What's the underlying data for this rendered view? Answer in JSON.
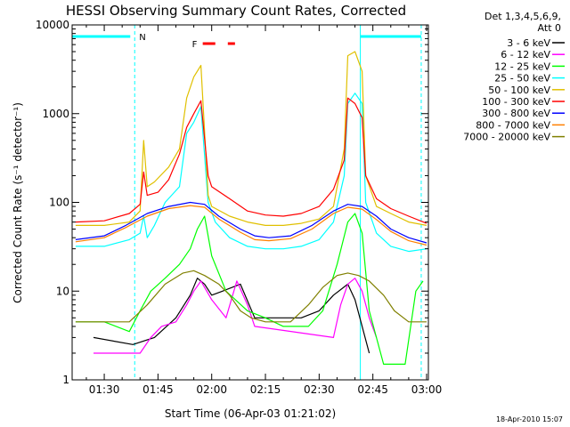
{
  "chart_data": {
    "type": "line",
    "title": "HESSI Observing Summary Count Rates, Corrected",
    "xlabel": "Start Time (06-Apr-03 01:21:02)",
    "ylabel": "Corrected Count Rate (s⁻¹ detector⁻¹)",
    "yscale": "log",
    "xlim": [
      "01:21:02",
      "03:00:30"
    ],
    "ylim": [
      1,
      10000
    ],
    "x_ticks": [
      "01:30",
      "01:45",
      "02:00",
      "02:15",
      "02:30",
      "02:45",
      "03:00"
    ],
    "y_ticks": [
      "1",
      "10",
      "100",
      "1000",
      "10000"
    ],
    "legend_header": [
      "Det 1,3,4,5,6,9,",
      "Att 0"
    ],
    "legend_placement": "outside-right",
    "stamp": "18-Apr-2010 15:07",
    "annotations": {
      "night_label": "N",
      "flare_label": "F",
      "night_start": "01:38:30",
      "day_start": "02:41:30",
      "night2_start": "02:58:30",
      "flare_marks": [
        [
          "01:57:30",
          "02:01:00"
        ],
        [
          "02:04:30",
          "02:06:30"
        ]
      ]
    },
    "series": [
      {
        "name": "3 - 6 keV",
        "color": "#000000",
        "x": [
          "01:27",
          "01:38",
          "01:44",
          "01:50",
          "01:54",
          "01:56",
          "01:58",
          "02:00",
          "02:03",
          "02:08",
          "02:12",
          "02:15",
          "02:20",
          "02:25",
          "02:30",
          "02:34",
          "02:38",
          "02:40",
          "02:42",
          "02:44"
        ],
        "y": [
          3,
          2.5,
          3,
          5,
          9,
          14,
          12,
          9,
          10,
          12,
          5,
          5,
          5,
          5,
          6,
          9,
          12,
          8,
          4,
          2
        ]
      },
      {
        "name": "6 - 12 keV",
        "color": "#ff00ff",
        "x": [
          "01:27",
          "01:35",
          "01:40",
          "01:43",
          "01:46",
          "01:50",
          "01:53",
          "01:55",
          "01:57",
          "02:00",
          "02:04",
          "02:07",
          "02:10",
          "02:12",
          "02:34",
          "02:36",
          "02:38",
          "02:40",
          "02:42",
          "02:44",
          "02:46"
        ],
        "y": [
          2,
          2,
          2,
          3,
          4,
          4.5,
          7,
          10,
          13,
          8,
          5,
          13,
          7,
          4,
          3,
          7,
          12,
          14,
          10,
          5,
          3
        ]
      },
      {
        "name": "12 - 25 keV",
        "color": "#00ff00",
        "x": [
          "01:22",
          "01:30",
          "01:37",
          "01:40",
          "01:43",
          "01:47",
          "01:51",
          "01:54",
          "01:56",
          "01:58",
          "02:00",
          "02:04",
          "02:10",
          "02:15",
          "02:20",
          "02:27",
          "02:31",
          "02:35",
          "02:38",
          "02:40",
          "02:42",
          "02:44",
          "02:48",
          "02:54",
          "02:57",
          "02:59"
        ],
        "y": [
          4.5,
          4.5,
          3.5,
          6,
          10,
          14,
          20,
          30,
          50,
          70,
          25,
          10,
          6,
          5,
          4,
          4,
          6,
          20,
          60,
          75,
          45,
          6,
          1.5,
          1.5,
          10,
          13
        ]
      },
      {
        "name": "25 - 50 keV",
        "color": "#00ffff",
        "x": [
          "01:22",
          "01:30",
          "01:37",
          "01:40",
          "01:41",
          "01:42",
          "01:44",
          "01:47",
          "01:51",
          "01:53",
          "01:55",
          "01:57",
          "01:59",
          "02:01",
          "02:05",
          "02:10",
          "02:15",
          "02:20",
          "02:25",
          "02:30",
          "02:34",
          "02:37",
          "02:38",
          "02:40",
          "02:42",
          "02:43",
          "02:46",
          "02:50",
          "02:55",
          "03:00"
        ],
        "y": [
          32,
          32,
          38,
          45,
          70,
          40,
          55,
          100,
          150,
          600,
          800,
          1200,
          100,
          60,
          40,
          32,
          30,
          30,
          32,
          38,
          60,
          200,
          1300,
          1700,
          1300,
          100,
          45,
          32,
          28,
          30
        ]
      },
      {
        "name": "50 - 100 keV",
        "color": "#e0c000",
        "x": [
          "01:22",
          "01:30",
          "01:37",
          "01:40",
          "01:41",
          "01:42",
          "01:44",
          "01:48",
          "01:51",
          "01:53",
          "01:55",
          "01:57",
          "01:59",
          "02:00",
          "02:05",
          "02:10",
          "02:15",
          "02:20",
          "02:25",
          "02:30",
          "02:34",
          "02:37",
          "02:38",
          "02:40",
          "02:42",
          "02:43",
          "02:46",
          "02:50",
          "02:55",
          "03:00"
        ],
        "y": [
          55,
          55,
          60,
          80,
          500,
          150,
          170,
          250,
          400,
          1500,
          2600,
          3500,
          120,
          90,
          70,
          60,
          55,
          55,
          58,
          65,
          90,
          400,
          4500,
          5000,
          3000,
          200,
          90,
          75,
          60,
          55
        ]
      },
      {
        "name": "100 - 300 keV",
        "color": "#ff0000",
        "x": [
          "01:22",
          "01:30",
          "01:37",
          "01:40",
          "01:41",
          "01:42",
          "01:45",
          "01:48",
          "01:51",
          "01:53",
          "01:55",
          "01:57",
          "01:59",
          "02:00",
          "02:05",
          "02:10",
          "02:15",
          "02:20",
          "02:25",
          "02:30",
          "02:34",
          "02:37",
          "02:38",
          "02:40",
          "02:42",
          "02:43",
          "02:46",
          "02:50",
          "02:55",
          "03:00"
        ],
        "y": [
          60,
          62,
          75,
          95,
          220,
          120,
          130,
          180,
          350,
          700,
          1000,
          1400,
          200,
          150,
          110,
          80,
          72,
          70,
          75,
          90,
          140,
          300,
          1500,
          1300,
          900,
          200,
          110,
          85,
          70,
          58
        ]
      },
      {
        "name": "300 - 800 keV",
        "color": "#0000ff",
        "x": [
          "01:22",
          "01:30",
          "01:36",
          "01:42",
          "01:48",
          "01:54",
          "01:58",
          "02:02",
          "02:08",
          "02:12",
          "02:16",
          "02:22",
          "02:28",
          "02:34",
          "02:38",
          "02:42",
          "02:46",
          "02:50",
          "02:55",
          "03:00"
        ],
        "y": [
          38,
          42,
          55,
          75,
          90,
          100,
          95,
          70,
          50,
          42,
          40,
          42,
          55,
          80,
          95,
          90,
          70,
          50,
          40,
          35
        ]
      },
      {
        "name": "800 - 7000 keV",
        "color": "#ff8000",
        "x": [
          "01:22",
          "01:30",
          "01:36",
          "01:42",
          "01:48",
          "01:54",
          "01:58",
          "02:02",
          "02:08",
          "02:12",
          "02:16",
          "02:22",
          "02:28",
          "02:34",
          "02:38",
          "02:42",
          "02:46",
          "02:50",
          "02:55",
          "03:00"
        ],
        "y": [
          36,
          40,
          52,
          70,
          85,
          92,
          88,
          65,
          46,
          38,
          37,
          39,
          50,
          75,
          88,
          84,
          64,
          47,
          37,
          33
        ]
      },
      {
        "name": "7000 - 20000 keV",
        "color": "#808000",
        "x": [
          "01:22",
          "01:30",
          "01:37",
          "01:42",
          "01:47",
          "01:52",
          "01:55",
          "01:58",
          "02:02",
          "02:05",
          "02:08",
          "02:11",
          "02:15",
          "02:22",
          "02:27",
          "02:31",
          "02:35",
          "02:38",
          "02:41",
          "02:44",
          "02:48",
          "02:51",
          "02:55",
          "03:00"
        ],
        "y": [
          4.5,
          4.5,
          4.5,
          7,
          12,
          16,
          17,
          15,
          12,
          9,
          6,
          5,
          4.5,
          4.5,
          7,
          11,
          15,
          16,
          15,
          13,
          9,
          6,
          4.5,
          4.5
        ]
      }
    ]
  }
}
